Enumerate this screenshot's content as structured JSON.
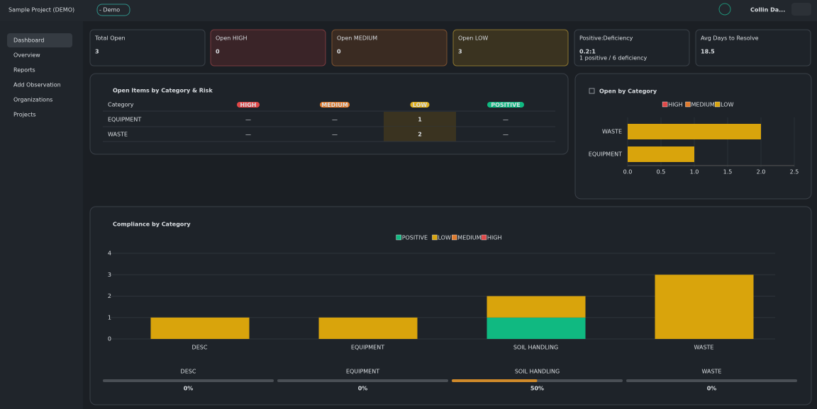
{
  "header": {
    "project": "Sample Project (DEMO)",
    "environment": "- Demo",
    "user": "Collin Da..."
  },
  "nav": [
    "Dashboard",
    "Overview",
    "Reports",
    "Add Observation",
    "Organizations",
    "Projects"
  ],
  "cards": [
    {
      "label": "Total Open",
      "value": 3
    },
    {
      "label": "Open HIGH",
      "value": 0
    },
    {
      "label": "Open MEDIUM",
      "value": 0
    },
    {
      "label": "Open LOW",
      "value": 3
    },
    {
      "label": "Positive:Deficiency",
      "value": "0.2:1",
      "sub": "1 positive / 6 deficiency"
    },
    {
      "label": "Avg Days to Resolve",
      "value": 18.5
    }
  ],
  "table": {
    "title": "Open Items by Category & Risk",
    "columns": [
      "Category",
      "HIGH",
      "MEDIUM",
      "LOW",
      "POSITIVE"
    ],
    "rows": [
      [
        "EQUIPMENT",
        "—",
        "—",
        1,
        "—"
      ],
      [
        "WASTE",
        "—",
        "—",
        2,
        "—"
      ]
    ]
  },
  "chart_data": [
    {
      "type": "hbar",
      "title": "Open by Category",
      "categories": [
        "WASTE",
        "EQUIPMENT"
      ],
      "series": [
        {
          "name": "HIGH",
          "color": "#e04848",
          "values": [
            0,
            0
          ]
        },
        {
          "name": "MEDIUM",
          "color": "#e07a2c",
          "values": [
            0,
            0
          ]
        },
        {
          "name": "LOW",
          "color": "#d9a40c",
          "values": [
            2,
            1
          ]
        }
      ],
      "xlim": [
        0,
        2.5
      ],
      "xticks": [
        {
          "value": 0,
          "label": "0.0"
        },
        0.5,
        {
          "value": 1,
          "label": "1.0"
        },
        1.5,
        {
          "value": 2,
          "label": "2.0"
        },
        2.5
      ]
    },
    {
      "type": "stacked_bar",
      "title": "Compliance by Category",
      "categories": [
        "DESC",
        "EQUIPMENT",
        "SOIL HANDLING",
        "WASTE"
      ],
      "series": [
        {
          "name": "POSITIVE",
          "color": "#10b981",
          "values": [
            0,
            0,
            1,
            0
          ]
        },
        {
          "name": "LOW",
          "color": "#d9a40c",
          "values": [
            1,
            1,
            1,
            3
          ]
        },
        {
          "name": "MEDIUM",
          "color": "#e07a2c",
          "values": [
            0,
            0,
            0,
            0
          ]
        },
        {
          "name": "HIGH",
          "color": "#e04848",
          "values": [
            0,
            0,
            0,
            0
          ]
        }
      ],
      "ylim": [
        0,
        4
      ],
      "yticks": [
        0,
        1,
        2,
        3,
        4
      ],
      "grid": true
    }
  ],
  "compliance": {
    "categories": [
      "DESC",
      "EQUIPMENT",
      "SOIL HANDLING",
      "WASTE"
    ],
    "values": [
      0,
      0,
      50,
      0
    ],
    "value_labels": [
      "0%",
      "0%",
      "50%",
      "0%"
    ],
    "color": "#d08a2a"
  }
}
